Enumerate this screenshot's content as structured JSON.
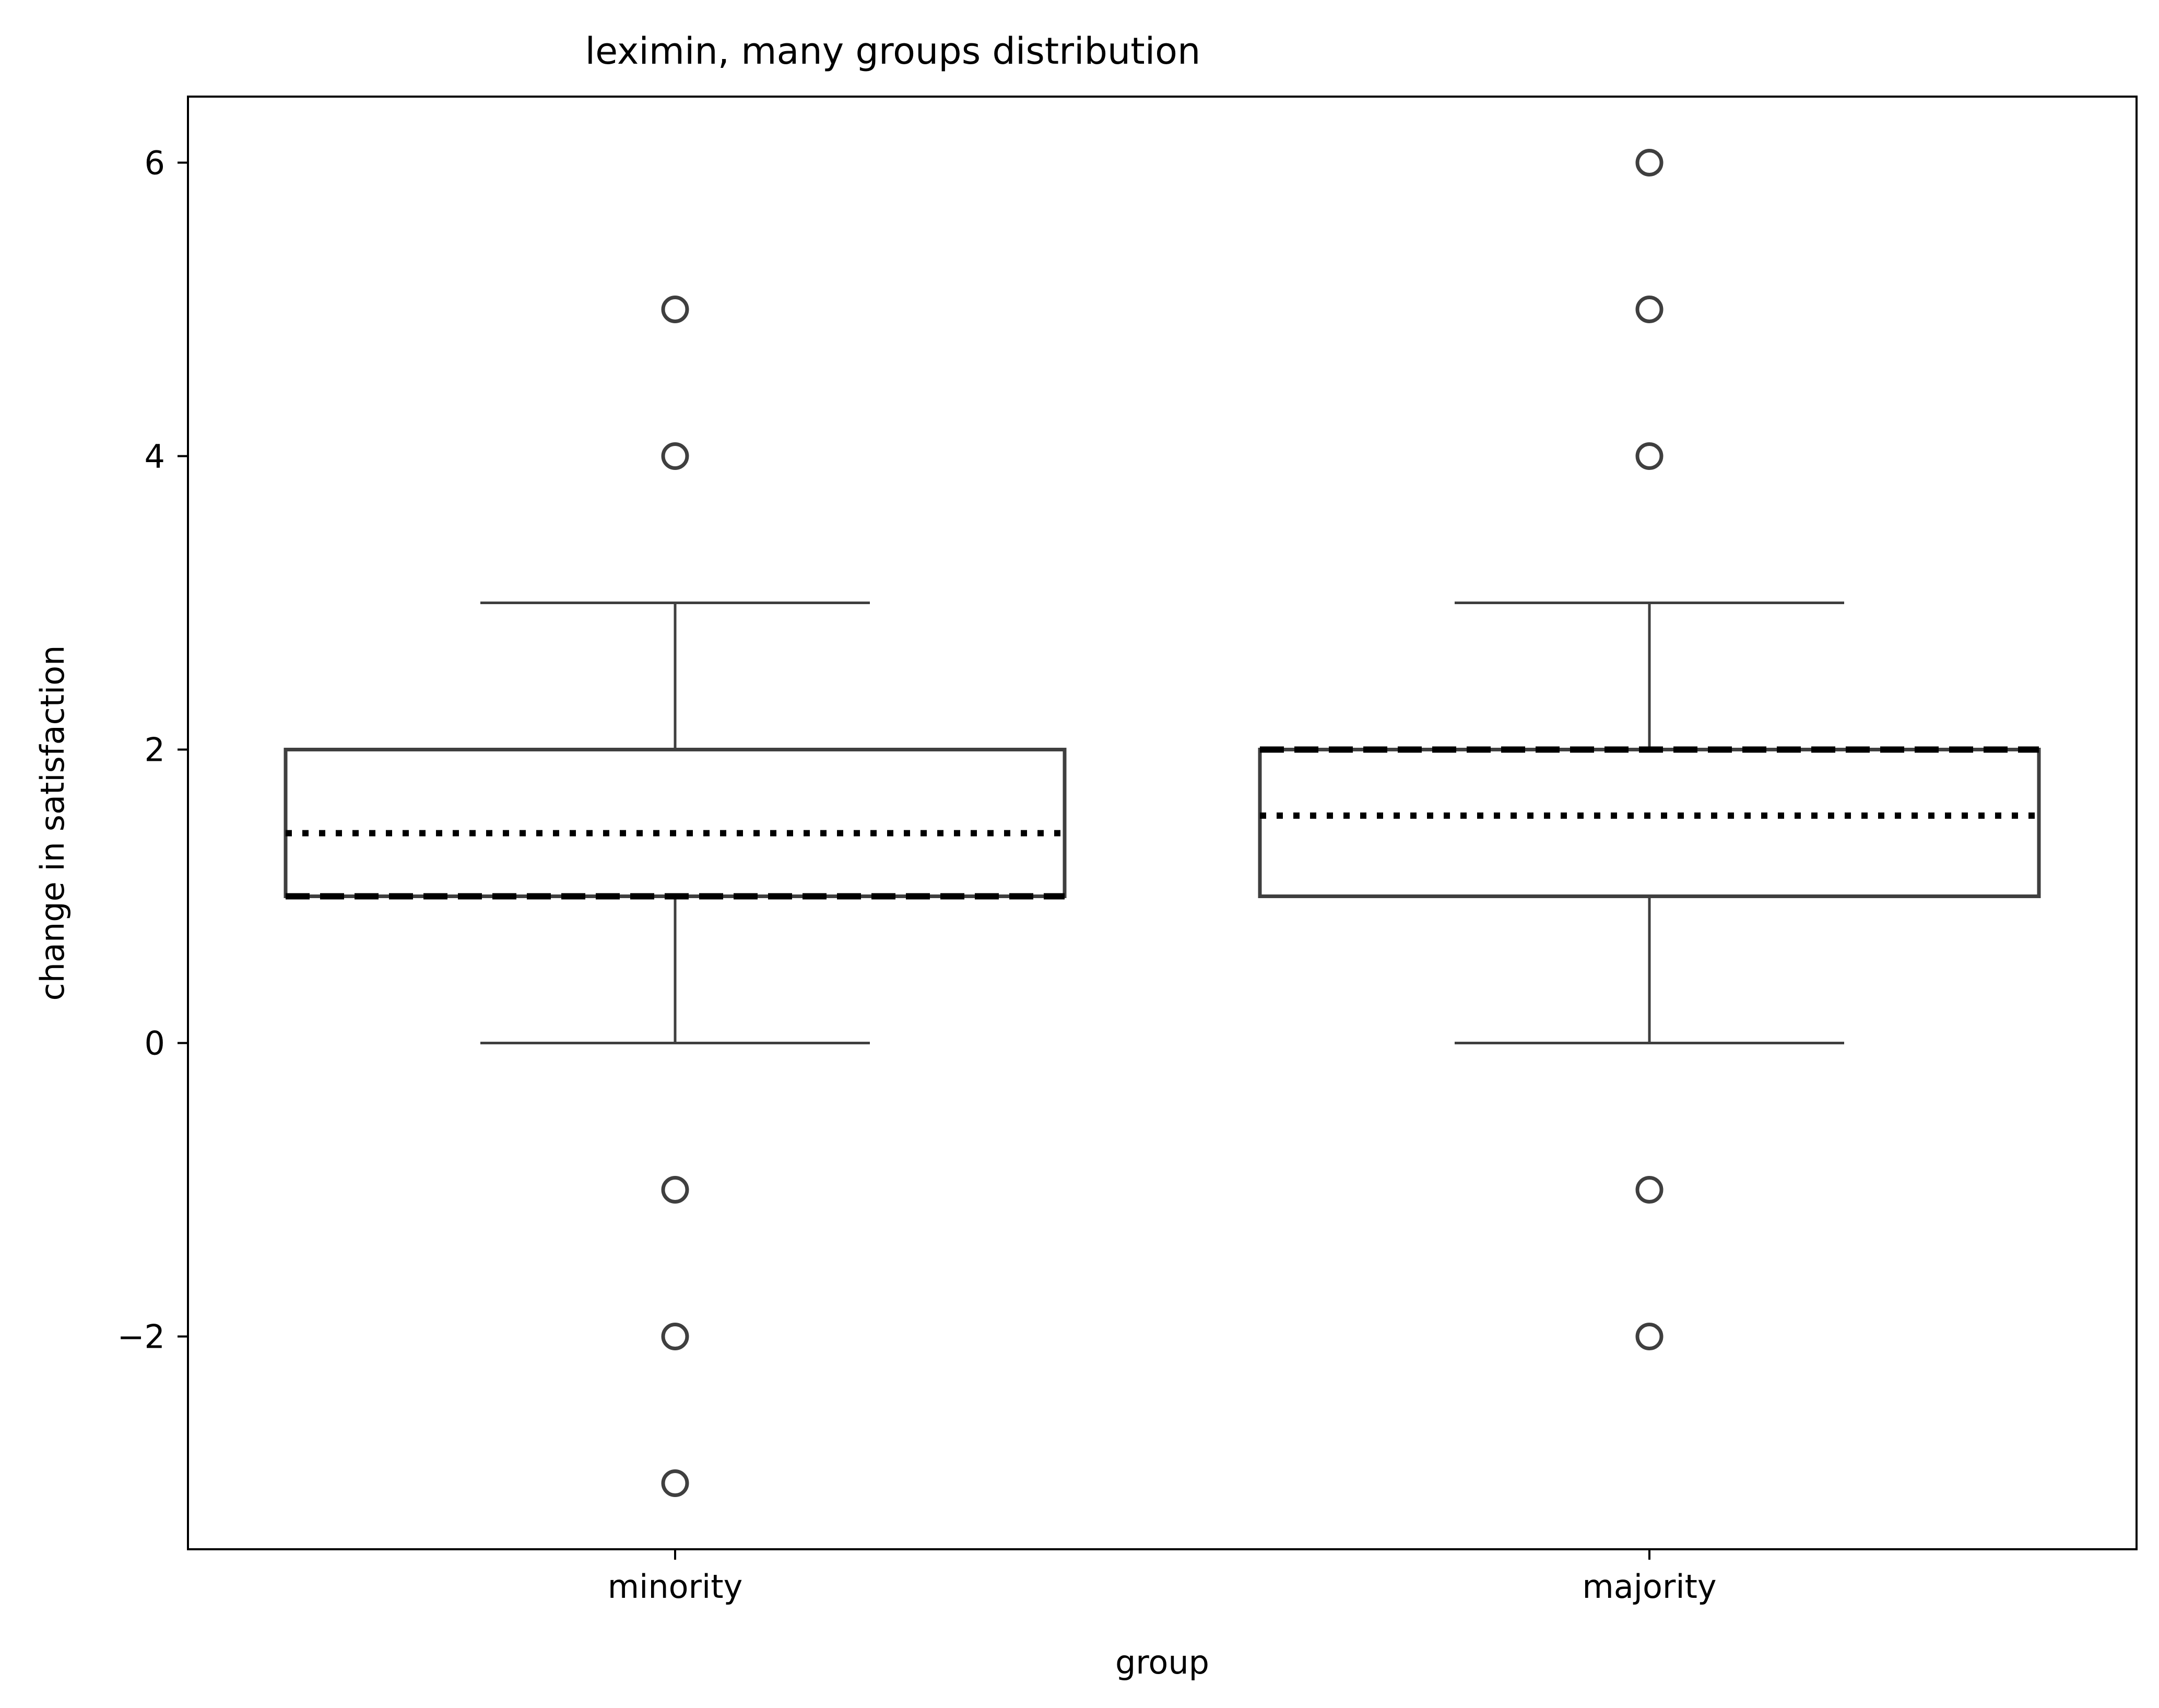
{
  "chart_data": {
    "type": "box",
    "title": "leximin, many groups distribution",
    "xlabel": "group",
    "ylabel": "change in satisfaction",
    "categories": [
      "minority",
      "majority"
    ],
    "ylim": [
      -3.45,
      6.45
    ],
    "yticks": [
      -2,
      0,
      2,
      4,
      6
    ],
    "ytick_labels": [
      "−2",
      "0",
      "2",
      "4",
      "6"
    ],
    "grid": false,
    "boxes": [
      {
        "category": "minority",
        "whisker_low": 0,
        "q1": 1,
        "median": 1,
        "q3": 2,
        "whisker_high": 3,
        "mean": 1.43,
        "outliers": [
          5,
          4,
          -1,
          -2,
          -3
        ]
      },
      {
        "category": "majority",
        "whisker_low": 0,
        "q1": 1,
        "median": 2,
        "q3": 2,
        "whisker_high": 3,
        "mean": 1.55,
        "outliers": [
          6,
          5,
          4,
          -1,
          -2
        ]
      }
    ],
    "line_styles": {
      "median": "dashed",
      "mean": "dotted"
    },
    "colors": {
      "box_edge": "#3f3f3f",
      "median_line": "#000000",
      "mean_line": "#000000",
      "box_fill": "#ffffff"
    }
  }
}
